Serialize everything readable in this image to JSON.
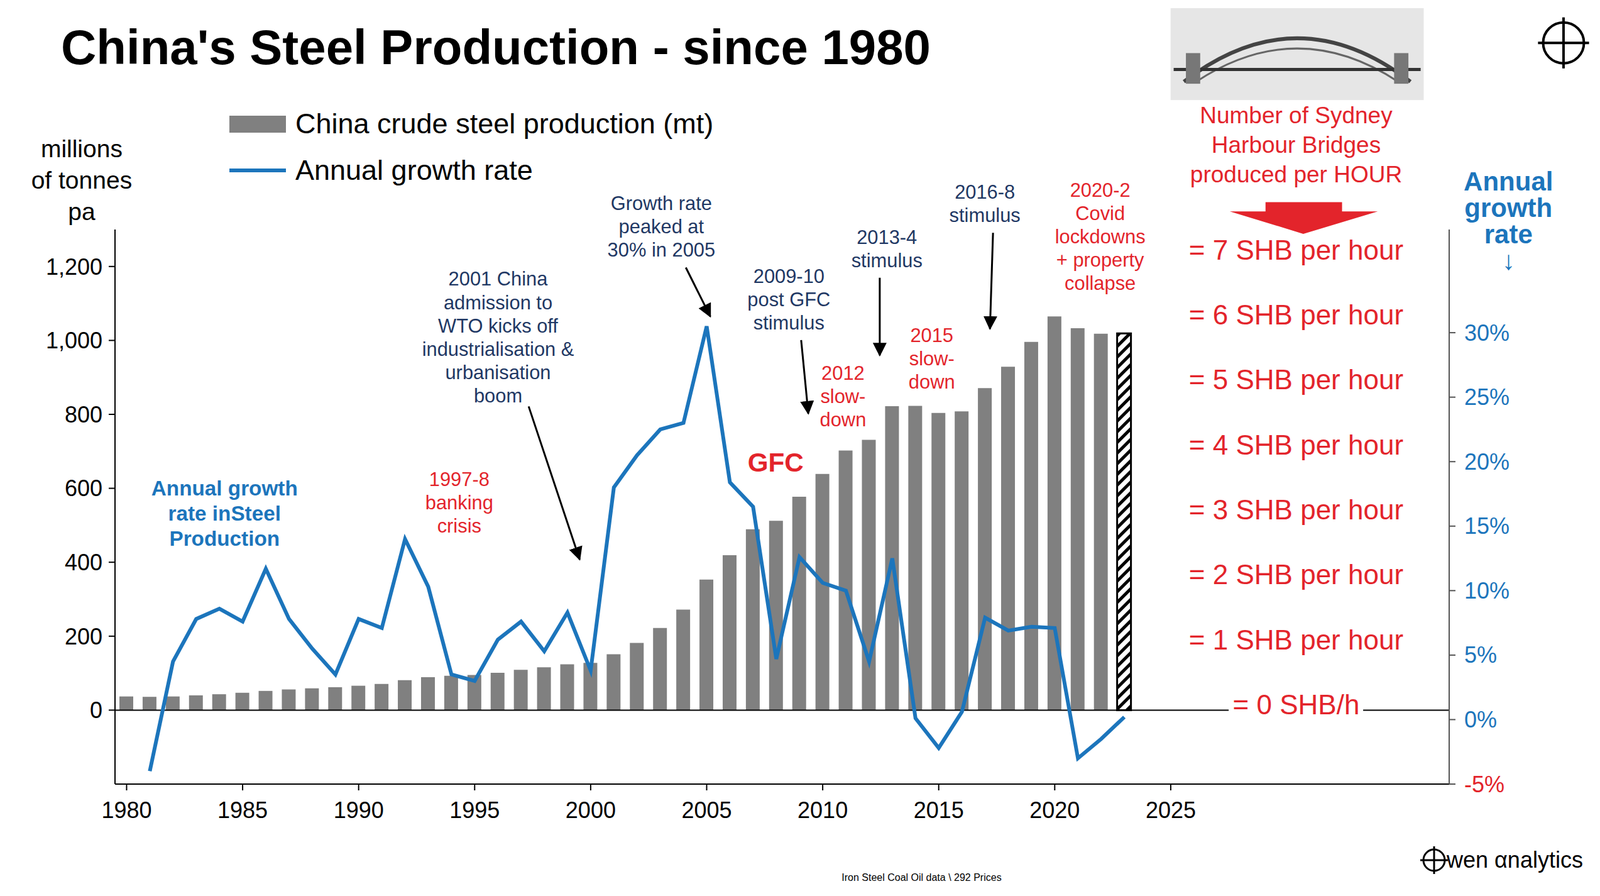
{
  "chart_data": {
    "type": "bar",
    "title": "China's Steel Production - since 1980",
    "x": [
      1980,
      1981,
      1982,
      1983,
      1984,
      1985,
      1986,
      1987,
      1988,
      1989,
      1990,
      1991,
      1992,
      1993,
      1994,
      1995,
      1996,
      1997,
      1998,
      1999,
      2000,
      2001,
      2002,
      2003,
      2004,
      2005,
      2006,
      2007,
      2008,
      2009,
      2010,
      2011,
      2012,
      2013,
      2014,
      2015,
      2016,
      2017,
      2018,
      2019,
      2020,
      2021,
      2022,
      2023
    ],
    "xlim": [
      1979.5,
      2037
    ],
    "xticks": [
      1980,
      1985,
      1990,
      1995,
      2000,
      2005,
      2010,
      2015,
      2020,
      2025
    ],
    "ylim": [
      -200,
      1300
    ],
    "yticks": [
      0,
      200,
      400,
      600,
      800,
      {
        "value": 1000,
        "label": "1,000"
      },
      {
        "value": 1200,
        "label": "1,200"
      }
    ],
    "y2lim": [
      -5,
      38
    ],
    "y2ticks": [
      {
        "value": -5,
        "label": "-5%"
      },
      {
        "value": 0,
        "label": "0%"
      },
      {
        "value": 5,
        "label": "5%"
      },
      {
        "value": 10,
        "label": "10%"
      },
      {
        "value": 15,
        "label": "15%"
      },
      {
        "value": 20,
        "label": "20%"
      },
      {
        "value": 25,
        "label": "25%"
      },
      {
        "value": 30,
        "label": "30%"
      }
    ],
    "ylabel": "millions\nof tonnes\npa",
    "y2label": "Annual\ngrowth\nrate\n↓",
    "grid": false,
    "legend": "upper left",
    "series": [
      {
        "name": "China crude steel production (mt)",
        "type": "bar",
        "color": "#808080",
        "colors": [
          "#808080",
          "#808080",
          "#808080",
          "#808080",
          "#808080",
          "#808080",
          "#808080",
          "#808080",
          "#808080",
          "#808080",
          "#808080",
          "#808080",
          "#808080",
          "#808080",
          "#808080",
          "#808080",
          "#808080",
          "#808080",
          "#808080",
          "#808080",
          "#808080",
          "#808080",
          "#808080",
          "#808080",
          "#808080",
          "#808080",
          "#808080",
          "#808080",
          "#808080",
          "#808080",
          "#808080",
          "#808080",
          "#808080",
          "#808080",
          "#808080",
          "#808080",
          "#808080",
          "#808080",
          "#808080",
          "#808080",
          "#808080",
          "#808080",
          "#808080",
          "#000000"
        ],
        "values": [
          37,
          36,
          37,
          40,
          43,
          47,
          52,
          56,
          59,
          62,
          66,
          71,
          81,
          89,
          93,
          95,
          101,
          109,
          116,
          124,
          128,
          151,
          182,
          222,
          272,
          353,
          419,
          489,
          512,
          577,
          639,
          702,
          731,
          822,
          823,
          804,
          808,
          871,
          929,
          996,
          1065,
          1033,
          1018,
          1019
        ]
      },
      {
        "name": "Annual growth rate",
        "type": "line",
        "axis": "y2",
        "color": "#1c75bc",
        "values": [
          null,
          -4,
          4.5,
          7.8,
          8.6,
          7.6,
          11.7,
          7.8,
          5.5,
          3.5,
          7.8,
          7.1,
          14,
          10.3,
          3.5,
          3,
          6.2,
          7.6,
          5.3,
          8.3,
          3.8,
          18,
          20.5,
          22.5,
          23,
          30.5,
          18.4,
          16.5,
          4.7,
          12.6,
          10.6,
          10,
          4.5,
          12.5,
          0.1,
          -2.2,
          0.6,
          7.9,
          6.9,
          7.2,
          7.1,
          -3,
          -1.5,
          0.2
        ]
      }
    ],
    "annotations": [
      {
        "text": "Annual growth\nrate inSteel\nProduction",
        "color": "#1c75bc"
      },
      {
        "text": "1997-8\nbanking\ncrisis",
        "color": "#e3242b"
      },
      {
        "text": "2001 China\nadmission to\nWTO kicks off\nindustrialisation &\nurbanisation\nboom",
        "color": "#1f3864"
      },
      {
        "text": "Growth rate\npeaked at\n30% in 2005",
        "color": "#1f3864"
      },
      {
        "text": "2009-10\npost GFC\nstimulus",
        "color": "#1f3864"
      },
      {
        "text": "GFC",
        "color": "#e3242b"
      },
      {
        "text": "2012\nslow-\ndown",
        "color": "#e3242b"
      },
      {
        "text": "2013-4\nstimulus",
        "color": "#1f3864"
      },
      {
        "text": "2015\nslow-\ndown",
        "color": "#e3242b"
      },
      {
        "text": "2016-8\nstimulus",
        "color": "#1f3864"
      },
      {
        "text": "2020-2\nCovid\nlockdowns\n+ property\ncollapse",
        "color": "#e3242b"
      }
    ],
    "shb_heading": "Number of Sydney\nHarbour Bridges\nproduced per HOUR",
    "shb_labels": [
      "= 7 SHB per hour",
      "= 6 SHB per hour",
      "= 5 SHB per hour",
      "= 4 SHB per hour",
      "= 3 SHB per hour",
      "= 2 SHB per hour",
      "= 1 SHB per hour",
      "= 0 SHB/h"
    ],
    "shb_color": "#e3242b",
    "footer": "Iron Steel Coal Oil data \\ 292 Prices",
    "logo": "wen αnalytics"
  }
}
